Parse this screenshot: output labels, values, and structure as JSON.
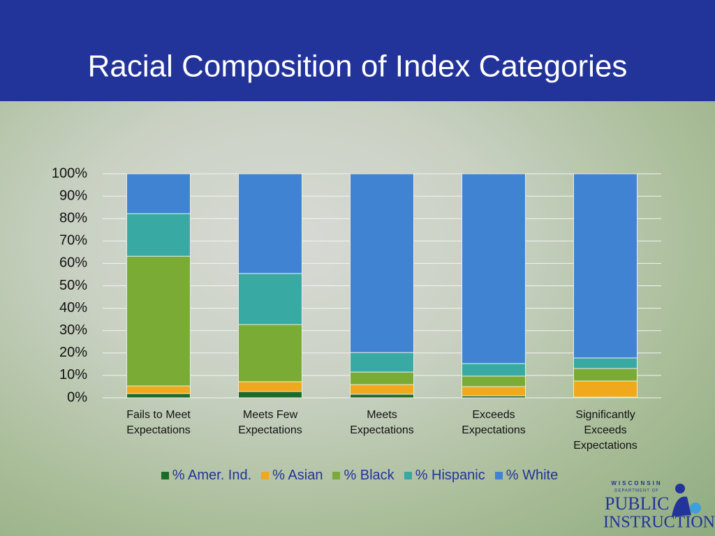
{
  "chart_data": {
    "type": "stacked_bar",
    "title": "Racial Composition of Index Categories",
    "categories": [
      "Fails to Meet Expectations",
      "Meets Few Expectations",
      "Meets Expectations",
      "Exceeds Expectations",
      "Significantly Exceeds Expectations"
    ],
    "series": [
      {
        "name": "% Amer. Ind.",
        "color": "#1d6b2a",
        "values": [
          1.9,
          2.8,
          1.6,
          0.9,
          0.3
        ]
      },
      {
        "name": "% Asian",
        "color": "#f0a91c",
        "values": [
          3.4,
          4.4,
          4.3,
          4.1,
          7.2
        ]
      },
      {
        "name": "% Black",
        "color": "#7aab35",
        "values": [
          57.9,
          25.5,
          5.6,
          4.7,
          5.6
        ]
      },
      {
        "name": "% Hispanic",
        "color": "#38a9a3",
        "values": [
          19.0,
          22.8,
          8.7,
          5.6,
          4.7
        ]
      },
      {
        "name": "% White",
        "color": "#3f83d2",
        "values": [
          17.8,
          44.5,
          79.8,
          84.7,
          82.2
        ]
      }
    ],
    "ylim": [
      0,
      100
    ],
    "yticks": [
      {
        "value": 0,
        "label": "0%"
      },
      {
        "value": 10,
        "label": "10%"
      },
      {
        "value": 20,
        "label": "20%"
      },
      {
        "value": 30,
        "label": "30%"
      },
      {
        "value": 40,
        "label": "40%"
      },
      {
        "value": 50,
        "label": "50%"
      },
      {
        "value": 60,
        "label": "60%"
      },
      {
        "value": 70,
        "label": "70%"
      },
      {
        "value": 80,
        "label": "80%"
      },
      {
        "value": 90,
        "label": "90%"
      },
      {
        "value": 100,
        "label": "100%"
      }
    ],
    "grid": true,
    "legend": "bottom"
  },
  "logo": {
    "line1": "WISCONSIN",
    "line2": "DEPARTMENT OF",
    "line3": "PUBLIC",
    "line4": "INSTRUCTION"
  }
}
